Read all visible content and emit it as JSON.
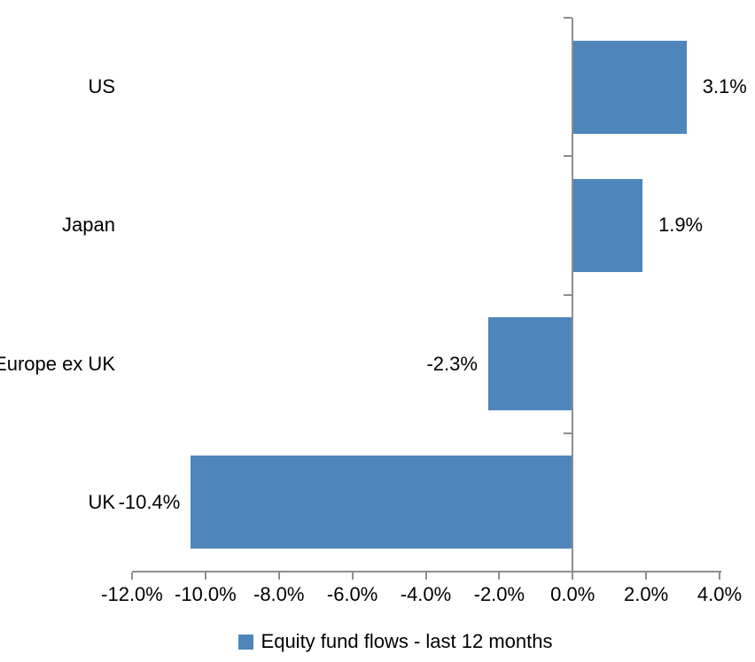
{
  "chart_data": {
    "type": "bar",
    "orientation": "horizontal",
    "title": "",
    "categories": [
      "US",
      "Japan",
      "Europe ex UK",
      "UK"
    ],
    "values": [
      3.1,
      1.9,
      -2.3,
      -10.4
    ],
    "data_labels": [
      "3.1%",
      "1.9%",
      "-2.3%",
      "-10.4%"
    ],
    "xlim": [
      -12,
      4
    ],
    "x_ticks": [
      -12,
      -10,
      -8,
      -6,
      -4,
      -2,
      0,
      2,
      4
    ],
    "x_tick_labels": [
      "-12.0%",
      "-10.0%",
      "-8.0%",
      "-6.0%",
      "-4.0%",
      "-2.0%",
      "0.0%",
      "2.0%",
      "4.0%"
    ],
    "grid": false,
    "legend": {
      "label": "Equity fund flows - last 12 months",
      "position": "bottom-center"
    },
    "colors": {
      "bar": "#4E86BB",
      "axis": "#8E8E8E",
      "text": "#000000",
      "background": "#FFFFFF"
    }
  }
}
